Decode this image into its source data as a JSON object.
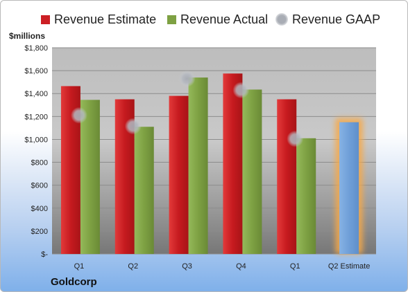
{
  "chart_data": {
    "type": "bar",
    "title": "",
    "ylabel": "$millions",
    "xlabel": "",
    "ylim": [
      0,
      1800
    ],
    "yticks": [
      0,
      200,
      400,
      600,
      800,
      1000,
      1200,
      1400,
      1600,
      1800
    ],
    "ytick_labels": [
      "$-",
      "$200",
      "$400",
      "$600",
      "$800",
      "$1,000",
      "$1,200",
      "$1,400",
      "$1,600",
      "$1,800"
    ],
    "categories": [
      "Q1",
      "Q2",
      "Q3",
      "Q4",
      "Q1",
      "Q2 Estimate"
    ],
    "series": [
      {
        "name": "Revenue Estimate",
        "color": "#cc1f24",
        "values": [
          1465,
          1350,
          1380,
          1575,
          1350,
          null
        ]
      },
      {
        "name": "Revenue Actual",
        "color": "#7ea143",
        "values": [
          1345,
          1110,
          1540,
          1435,
          1010,
          1150
        ]
      },
      {
        "name": "Revenue GAAP",
        "color": "#b4b8c0",
        "values": [
          1210,
          1115,
          1530,
          1430,
          1005,
          null
        ]
      }
    ],
    "highlight_category": "Q2 Estimate",
    "highlight_bar_color": "#6f9fd8",
    "grid": true,
    "legend_position": "top"
  },
  "company": "Goldcorp"
}
